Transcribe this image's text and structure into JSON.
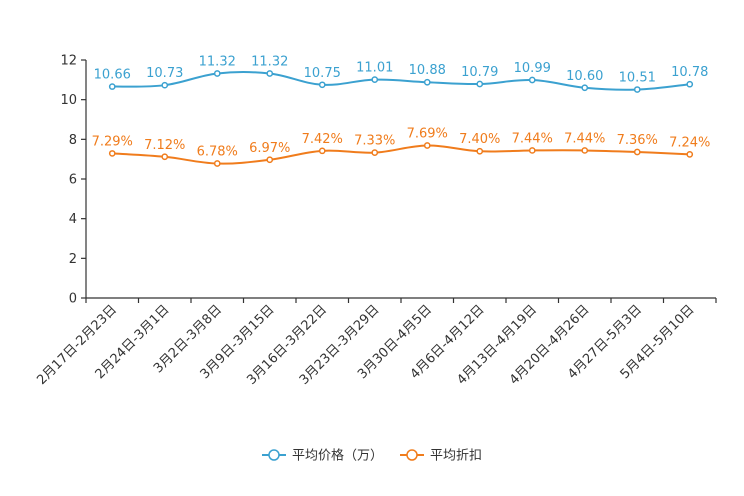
{
  "chart_data": {
    "type": "line",
    "title": "",
    "xlabel": "",
    "ylabel": "",
    "ylim": [
      0,
      12
    ],
    "yticks": [
      0,
      2,
      4,
      6,
      8,
      10,
      12
    ],
    "grid": false,
    "legend_position": "bottom",
    "categories": [
      "2月17日-2月23日",
      "2月24日-3月1日",
      "3月2日-3月8日",
      "3月9日-3月15日",
      "3月16日-3月22日",
      "3月23日-3月29日",
      "3月30日-4月5日",
      "4月6日-4月12日",
      "4月13日-4月19日",
      "4月20日-4月26日",
      "4月27日-5月3日",
      "5月4日-5月10日"
    ],
    "series": [
      {
        "name": "平均价格（万）",
        "color": "#3ba1d0",
        "values": [
          10.66,
          10.73,
          11.32,
          11.32,
          10.75,
          11.01,
          10.88,
          10.79,
          10.99,
          10.6,
          10.51,
          10.78
        ],
        "labels": [
          "10.66",
          "10.73",
          "11.32",
          "11.32",
          "10.75",
          "11.01",
          "10.88",
          "10.79",
          "10.99",
          "10.60",
          "10.51",
          "10.78"
        ]
      },
      {
        "name": "平均折扣",
        "color": "#f07c1c",
        "values": [
          7.29,
          7.12,
          6.78,
          6.97,
          7.42,
          7.33,
          7.69,
          7.4,
          7.44,
          7.44,
          7.36,
          7.24
        ],
        "labels": [
          "7.29%",
          "7.12%",
          "6.78%",
          "6.97%",
          "7.42%",
          "7.33%",
          "7.69%",
          "7.40%",
          "7.44%",
          "7.44%",
          "7.36%",
          "7.24%"
        ]
      }
    ]
  }
}
